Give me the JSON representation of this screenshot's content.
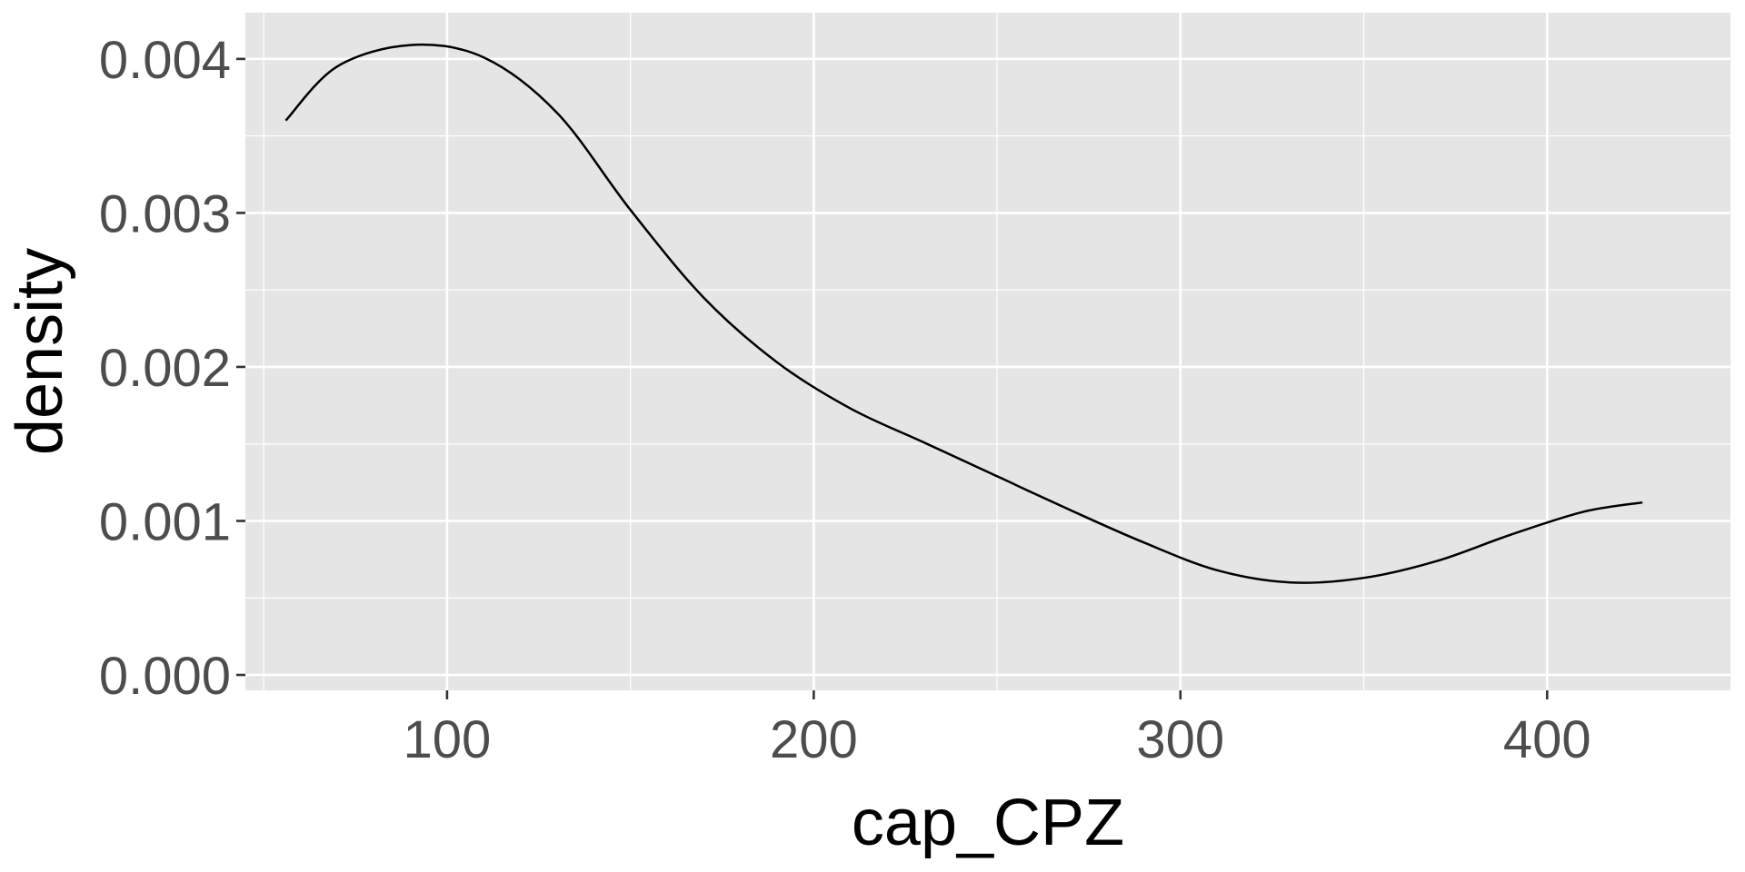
{
  "chart_data": {
    "type": "line",
    "title": "",
    "xlabel": "cap_CPZ",
    "ylabel": "density",
    "xlim": [
      45,
      450
    ],
    "ylim": [
      -0.0001,
      0.0043
    ],
    "x_ticks": [
      100,
      200,
      300,
      400
    ],
    "x_tick_labels": [
      "100",
      "200",
      "300",
      "400"
    ],
    "x_minor_ticks": [
      50,
      150,
      250,
      350
    ],
    "y_ticks": [
      0.0,
      0.001,
      0.002,
      0.003,
      0.004
    ],
    "y_tick_labels": [
      "0.000",
      "0.001",
      "0.002",
      "0.003",
      "0.004"
    ],
    "y_minor_ticks": [
      0.0005,
      0.0015,
      0.0025,
      0.0035
    ],
    "grid": true,
    "legend": "none",
    "colors": {
      "panel_background": "#e5e5e5",
      "grid": "#ffffff",
      "line": "#000000",
      "tick_text": "#4d4d4d",
      "axis_title": "#000000"
    },
    "series": [
      {
        "x": [
          56,
          70,
          90,
          110,
          130,
          150,
          170,
          190,
          210,
          230,
          250,
          270,
          290,
          310,
          330,
          350,
          370,
          390,
          410,
          426
        ],
        "y": [
          0.0036,
          0.00395,
          0.00409,
          0.00401,
          0.00365,
          0.00302,
          0.00245,
          0.00203,
          0.00173,
          0.00151,
          0.00129,
          0.00107,
          0.00086,
          0.00068,
          0.0006,
          0.00063,
          0.00074,
          0.00091,
          0.00106,
          0.00112
        ]
      }
    ]
  }
}
